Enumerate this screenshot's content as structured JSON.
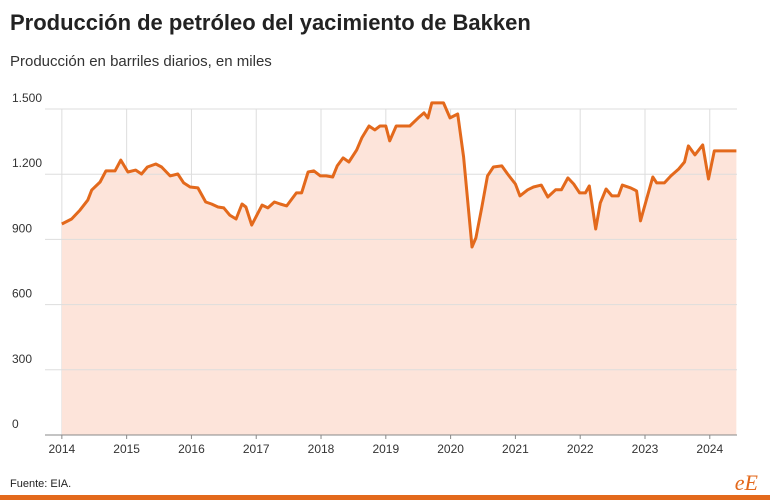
{
  "chart_data": {
    "type": "area-line",
    "title": "Producción de petróleo del yacimiento de Bakken",
    "subtitle": "Producción en barriles diarios, en miles",
    "source": "Fuente: EIA.",
    "logo": "eE",
    "color": "#e3691c",
    "fill_color": "#fde4da",
    "x": [
      2014.0,
      2014.15,
      2014.28,
      2014.4,
      2014.46,
      2014.59,
      2014.68,
      2014.82,
      2014.91,
      2015.02,
      2015.14,
      2015.23,
      2015.32,
      2015.45,
      2015.54,
      2015.67,
      2015.79,
      2015.88,
      2015.98,
      2016.1,
      2016.22,
      2016.31,
      2016.41,
      2016.5,
      2016.59,
      2016.69,
      2016.78,
      2016.84,
      2016.93,
      2017.09,
      2017.18,
      2017.28,
      2017.37,
      2017.47,
      2017.62,
      2017.7,
      2017.8,
      2017.89,
      2017.99,
      2018.08,
      2018.18,
      2018.25,
      2018.34,
      2018.43,
      2018.55,
      2018.63,
      2018.74,
      2018.83,
      2018.91,
      2019.0,
      2019.06,
      2019.16,
      2019.28,
      2019.37,
      2019.5,
      2019.59,
      2019.65,
      2019.71,
      2019.89,
      2019.99,
      2020.11,
      2020.2,
      2020.33,
      2020.39,
      2020.48,
      2020.57,
      2020.66,
      2020.79,
      2020.88,
      2021.0,
      2021.07,
      2021.19,
      2021.28,
      2021.4,
      2021.5,
      2021.62,
      2021.71,
      2021.81,
      2021.9,
      2021.99,
      2022.08,
      2022.14,
      2022.24,
      2022.31,
      2022.4,
      2022.49,
      2022.59,
      2022.65,
      2022.78,
      2022.87,
      2022.93,
      2023.02,
      2023.12,
      2023.18,
      2023.3,
      2023.4,
      2023.52,
      2023.61,
      2023.67,
      2023.77,
      2023.89,
      2023.98,
      2024.07,
      2024.41
    ],
    "values": [
      971,
      994,
      1035,
      1081,
      1127,
      1164,
      1215,
      1215,
      1265,
      1210,
      1219,
      1201,
      1233,
      1247,
      1233,
      1192,
      1201,
      1160,
      1141,
      1137,
      1072,
      1063,
      1049,
      1045,
      1012,
      994,
      1063,
      1049,
      966,
      1058,
      1045,
      1072,
      1063,
      1054,
      1114,
      1114,
      1210,
      1215,
      1192,
      1192,
      1187,
      1238,
      1275,
      1256,
      1312,
      1367,
      1422,
      1404,
      1422,
      1422,
      1353,
      1422,
      1422,
      1422,
      1459,
      1482,
      1459,
      1528,
      1528,
      1459,
      1477,
      1279,
      865,
      907,
      1045,
      1192,
      1233,
      1238,
      1201,
      1155,
      1100,
      1128,
      1141,
      1150,
      1095,
      1128,
      1128,
      1183,
      1155,
      1114,
      1114,
      1146,
      948,
      1068,
      1132,
      1100,
      1100,
      1150,
      1137,
      1123,
      985,
      1081,
      1187,
      1160,
      1160,
      1192,
      1224,
      1256,
      1330,
      1289,
      1335,
      1178,
      1307,
      1307
    ],
    "xlim": [
      2013.74,
      2024.42
    ],
    "xticks": [
      2014,
      2015,
      2016,
      2017,
      2018,
      2019,
      2020,
      2021,
      2022,
      2023,
      2024
    ],
    "ylim": [
      0,
      1500
    ],
    "yticks": [
      0,
      300,
      600,
      900,
      {
        "value": 1200,
        "label": "1.200"
      },
      {
        "value": 1500,
        "label": "1.500"
      }
    ],
    "grid": true
  }
}
